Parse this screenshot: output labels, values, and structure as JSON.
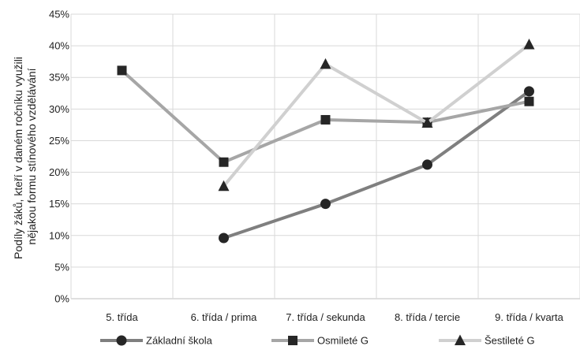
{
  "chart_data": {
    "type": "line",
    "ylabel_lines": [
      "Podíly žáků, kteří v daném ročníku využili",
      "nějakou formu stínového vzdělávání"
    ],
    "ylim": [
      0,
      45
    ],
    "y_ticks": [
      "0%",
      "5%",
      "10%",
      "15%",
      "20%",
      "25%",
      "30%",
      "35%",
      "40%",
      "45%"
    ],
    "categories": [
      "5. třída",
      "6. třída / prima",
      "7. třída / sekunda",
      "8. třída / tercie",
      "9. třída / kvarta"
    ],
    "grid": true,
    "legend_position": "bottom",
    "series": [
      {
        "name": "Základní škola",
        "marker": "circle",
        "color": "#7f7f7f",
        "values": [
          null,
          9.6,
          15.0,
          21.2,
          32.8
        ]
      },
      {
        "name": "Osmileté G",
        "marker": "square",
        "color": "#a6a6a6",
        "values": [
          36.1,
          21.6,
          28.3,
          27.9,
          31.2
        ]
      },
      {
        "name": "Šestileté G",
        "marker": "triangle",
        "color": "#d0d0d0",
        "values": [
          null,
          17.8,
          37.1,
          27.8,
          40.2
        ]
      }
    ]
  }
}
